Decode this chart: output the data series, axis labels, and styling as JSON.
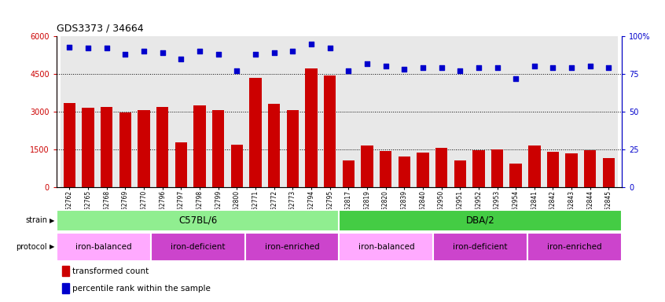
{
  "title": "GDS3373 / 34664",
  "samples": [
    "GSM262762",
    "GSM262765",
    "GSM262768",
    "GSM262769",
    "GSM262770",
    "GSM262796",
    "GSM262797",
    "GSM262798",
    "GSM262799",
    "GSM262800",
    "GSM262771",
    "GSM262772",
    "GSM262773",
    "GSM262794",
    "GSM262795",
    "GSM262817",
    "GSM262819",
    "GSM262820",
    "GSM262839",
    "GSM262840",
    "GSM262950",
    "GSM262951",
    "GSM262952",
    "GSM262953",
    "GSM262954",
    "GSM262841",
    "GSM262842",
    "GSM262843",
    "GSM262844",
    "GSM262845"
  ],
  "bar_values": [
    3350,
    3150,
    3200,
    2980,
    3050,
    3200,
    1780,
    3250,
    3050,
    1680,
    4350,
    3300,
    3050,
    4720,
    4450,
    1050,
    1650,
    1430,
    1220,
    1380,
    1580,
    1080,
    1480,
    1500,
    950,
    1660,
    1400,
    1350,
    1480,
    1170
  ],
  "dot_values": [
    93,
    92,
    92,
    88,
    90,
    89,
    85,
    90,
    88,
    77,
    88,
    89,
    90,
    95,
    92,
    77,
    82,
    80,
    78,
    79,
    79,
    77,
    79,
    79,
    72,
    80,
    79,
    79,
    80,
    79
  ],
  "strain_groups": [
    {
      "label": "C57BL/6",
      "start": 0,
      "end": 15,
      "color": "#90EE90"
    },
    {
      "label": "DBA/2",
      "start": 15,
      "end": 30,
      "color": "#44CC44"
    }
  ],
  "protocol_groups": [
    {
      "label": "iron-balanced",
      "start": 0,
      "end": 5,
      "color": "#FFAAFF"
    },
    {
      "label": "iron-deficient",
      "start": 5,
      "end": 10,
      "color": "#CC44CC"
    },
    {
      "label": "iron-enriched",
      "start": 10,
      "end": 15,
      "color": "#CC44CC"
    },
    {
      "label": "iron-balanced",
      "start": 15,
      "end": 20,
      "color": "#FFAAFF"
    },
    {
      "label": "iron-deficient",
      "start": 20,
      "end": 25,
      "color": "#CC44CC"
    },
    {
      "label": "iron-enriched",
      "start": 25,
      "end": 30,
      "color": "#CC44CC"
    }
  ],
  "bar_color": "#CC0000",
  "dot_color": "#0000CC",
  "ylim_left": [
    0,
    6000
  ],
  "ylim_right": [
    0,
    100
  ],
  "yticks_left": [
    0,
    1500,
    3000,
    4500,
    6000
  ],
  "yticks_right": [
    0,
    25,
    50,
    75,
    100
  ],
  "col_bg_color": "#E8E8E8",
  "legend_items": [
    {
      "label": "transformed count",
      "color": "#CC0000"
    },
    {
      "label": "percentile rank within the sample",
      "color": "#0000CC"
    }
  ]
}
